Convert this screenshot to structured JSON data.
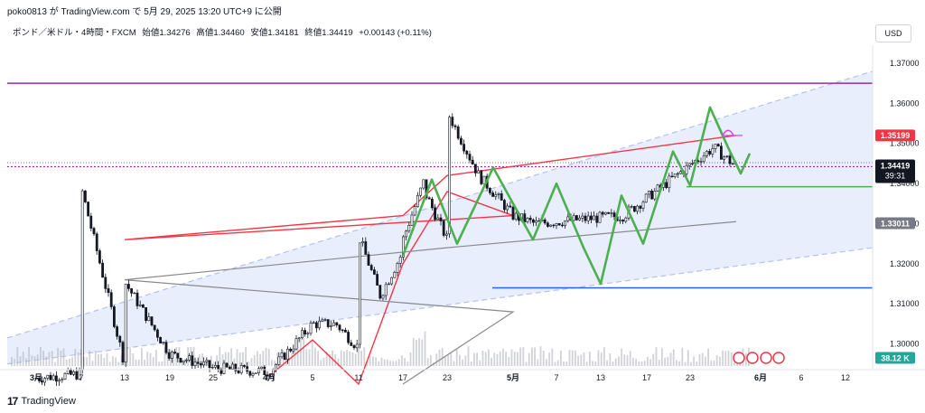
{
  "header": {
    "attribution": "poko0813 が TradingView.com で 5月 29, 2025 13:20 UTC+9 に公開"
  },
  "symbol_bar": {
    "title": "ポンド／米ドル・4時間・FXCM",
    "open": "始値1.34276",
    "high": "高値1.34460",
    "low": "安値1.34181",
    "close": "終値1.34419",
    "change": "+0.00143 (+0.11%)"
  },
  "currency_button": "USD",
  "footer": {
    "brand": "TradingView"
  },
  "price_tags": {
    "red_label": "1.35199",
    "last_price": "1.34419",
    "countdown": "39:31",
    "gray_label": "1.33011",
    "volume_label": "38.12 K"
  },
  "colors": {
    "candle": "#131722",
    "ema_fast": "#f23645",
    "sma_slow": "#8a8a8a",
    "pattern": "#4caf50",
    "resistance": "#9c27b0",
    "support": "#2962ff",
    "channel_fill": "#e8eefc",
    "channel_border": "#b2c2f2",
    "volume": "#b2b5be"
  },
  "chart_data": {
    "type": "candlestick",
    "y_axis": {
      "ticks": [
        "1.37000",
        "1.36000",
        "1.35000",
        "1.34000",
        "1.33000",
        "1.32000",
        "1.31000",
        "1.30000"
      ],
      "ylim": [
        1.2945,
        1.3745
      ]
    },
    "x_axis": {
      "ticks": [
        "3月",
        "7",
        "13",
        "19",
        "25",
        "4月",
        "5",
        "11",
        "17",
        "23",
        "5月",
        "7",
        "13",
        "17",
        "23",
        "6月",
        "6",
        "12"
      ]
    },
    "series": [
      {
        "name": "price",
        "kind": "close",
        "points": [
          [
            "3月",
            1.2915
          ],
          [
            "7",
            1.2925
          ],
          [
            "13",
            1.295
          ],
          [
            "19",
            1.2975
          ],
          [
            "25",
            1.294
          ],
          [
            "4月",
            1.293
          ],
          [
            "5",
            1.305
          ],
          [
            "8",
            1.305
          ],
          [
            "11",
            1.299
          ],
          [
            "14",
            1.312
          ],
          [
            "17",
            1.323
          ],
          [
            "20",
            1.341
          ],
          [
            "23",
            1.326
          ],
          [
            "27",
            1.342
          ],
          [
            "5月",
            1.332
          ],
          [
            "4",
            1.33
          ],
          [
            "7",
            1.339
          ],
          [
            "11",
            1.327
          ],
          [
            "13",
            1.3155
          ],
          [
            "15",
            1.332
          ],
          [
            "17",
            1.326
          ],
          [
            "20",
            1.338
          ],
          [
            "23",
            1.358
          ],
          [
            "26",
            1.349
          ],
          [
            "28",
            1.3442
          ]
        ]
      },
      {
        "name": "fast MA",
        "kind": "line",
        "points": [
          [
            "4月",
            1.292
          ],
          [
            "5",
            1.301
          ],
          [
            "11",
            1.29
          ],
          [
            "17",
            1.32
          ],
          [
            "23",
            1.338
          ],
          [
            "5月",
            1.332
          ],
          [
            "13",
            1.326
          ],
          [
            "17",
            1.332
          ],
          [
            "23",
            1.342
          ],
          [
            "28",
            1.352
          ]
        ]
      },
      {
        "name": "slow MA",
        "kind": "line",
        "points": [
          [
            "17",
            1.29
          ],
          [
            "5月",
            1.308
          ],
          [
            "13",
            1.316
          ],
          [
            "23",
            1.324
          ],
          [
            "28",
            1.3305
          ]
        ]
      }
    ],
    "annotations": {
      "horizontal_lines": [
        {
          "y": 1.365,
          "color": "#9c27b0"
        },
        {
          "y": 1.3442,
          "color": "#9c27b0",
          "style": "dotted"
        },
        {
          "y": 1.3392,
          "color": "#4caf50"
        },
        {
          "y": 1.314,
          "color": "#2962ff"
        }
      ],
      "channel": {
        "lower": [
          1.295,
          1.324
        ],
        "upper": [
          1.3015,
          1.368
        ]
      }
    },
    "grid": false,
    "legend": "none"
  }
}
